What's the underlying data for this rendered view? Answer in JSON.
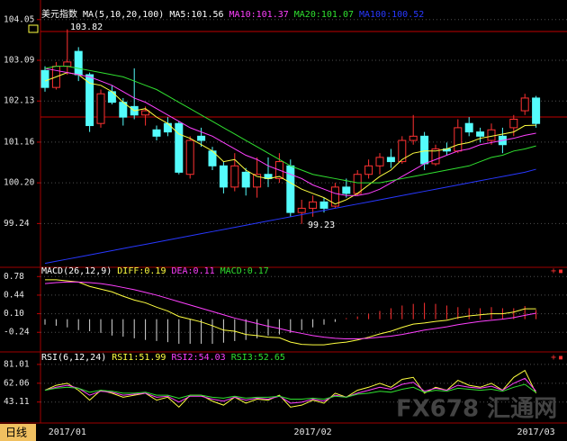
{
  "chart_data": [
    {
      "type": "candlestick",
      "title": "美元指数",
      "indicator": "MA(5,10,20,100)",
      "categories": [
        null,
        null,
        "2017/01",
        null,
        null,
        null,
        null,
        null,
        null,
        null,
        null,
        null,
        null,
        null,
        null,
        null,
        null,
        null,
        null,
        null,
        null,
        null,
        null,
        null,
        "2017/02",
        null,
        null,
        null,
        null,
        null,
        null,
        null,
        null,
        null,
        null,
        null,
        null,
        null,
        null,
        null,
        null,
        null,
        null,
        null,
        "2017/03"
      ],
      "open": [
        102.85,
        102.45,
        102.95,
        103.3,
        102.75,
        101.6,
        102.35,
        102.1,
        102.0,
        101.8,
        101.45,
        101.6,
        101.6,
        100.4,
        101.3,
        100.95,
        100.6,
        100.1,
        100.45,
        100.1,
        100.4,
        100.3,
        100.6,
        99.5,
        99.6,
        99.75,
        99.65,
        100.1,
        99.95,
        100.4,
        100.6,
        100.8,
        100.7,
        101.2,
        101.3,
        100.65,
        101.0,
        100.95,
        101.6,
        101.4,
        101.2,
        101.3,
        101.5,
        101.9,
        102.2
      ],
      "high": [
        102.95,
        103.05,
        103.82,
        103.4,
        102.8,
        102.4,
        102.5,
        102.2,
        102.9,
        102.0,
        101.55,
        101.75,
        101.65,
        101.3,
        101.5,
        101.05,
        100.7,
        100.9,
        100.55,
        100.8,
        100.8,
        100.9,
        100.75,
        99.8,
        99.9,
        99.85,
        100.2,
        100.3,
        100.5,
        100.75,
        100.9,
        101.0,
        101.3,
        101.8,
        101.4,
        101.1,
        101.15,
        101.7,
        101.75,
        101.5,
        101.6,
        101.5,
        101.8,
        102.3,
        102.25
      ],
      "low": [
        102.35,
        102.4,
        102.75,
        102.6,
        101.4,
        101.5,
        102.05,
        101.55,
        101.7,
        101.55,
        101.2,
        101.3,
        100.4,
        100.3,
        101.05,
        100.5,
        99.95,
        100.0,
        99.9,
        99.85,
        100.1,
        100.2,
        99.4,
        99.23,
        99.4,
        99.5,
        99.6,
        99.85,
        99.9,
        100.3,
        100.4,
        100.55,
        100.65,
        101.1,
        100.5,
        100.6,
        100.85,
        100.9,
        101.3,
        101.15,
        101.1,
        100.9,
        101.3,
        101.8,
        101.5
      ],
      "close": [
        102.45,
        102.95,
        103.05,
        102.75,
        101.55,
        102.3,
        102.1,
        101.75,
        101.8,
        101.9,
        101.3,
        101.4,
        100.45,
        101.2,
        101.2,
        100.6,
        100.1,
        100.6,
        100.1,
        100.4,
        100.3,
        100.7,
        99.5,
        99.6,
        99.75,
        99.6,
        100.1,
        99.95,
        100.4,
        100.6,
        100.8,
        100.7,
        101.2,
        101.3,
        100.65,
        101.0,
        100.95,
        101.5,
        101.4,
        101.3,
        101.45,
        101.1,
        101.7,
        102.2,
        101.6
      ],
      "up_color": "#ff3232",
      "down_color": "#54fcfc",
      "series": [
        {
          "name": "MA5:101.56",
          "color": "#ffff40",
          "label_color": "#ffffff",
          "values": [
            102.6,
            102.7,
            102.8,
            102.75,
            102.55,
            102.5,
            102.35,
            102.1,
            101.9,
            101.95,
            101.75,
            101.6,
            101.35,
            101.25,
            101.1,
            100.95,
            100.7,
            100.75,
            100.5,
            100.35,
            100.3,
            100.35,
            100.2,
            100.05,
            99.95,
            99.85,
            99.7,
            99.8,
            99.95,
            100.15,
            100.35,
            100.5,
            100.75,
            100.9,
            100.95,
            100.95,
            101.0,
            101.1,
            101.15,
            101.25,
            101.3,
            101.35,
            101.4,
            101.55,
            101.56
          ]
        },
        {
          "name": "MA10:101.37",
          "color": "#ff40ff",
          "label_color": "#ff40ff",
          "values": [
            102.9,
            102.85,
            102.8,
            102.75,
            102.7,
            102.6,
            102.5,
            102.35,
            102.2,
            102.1,
            101.95,
            101.8,
            101.65,
            101.5,
            101.4,
            101.3,
            101.15,
            101.0,
            100.85,
            100.75,
            100.6,
            100.5,
            100.4,
            100.3,
            100.15,
            100.05,
            99.95,
            99.9,
            99.9,
            99.95,
            100.05,
            100.2,
            100.35,
            100.5,
            100.65,
            100.75,
            100.85,
            100.95,
            101.0,
            101.1,
            101.15,
            101.2,
            101.25,
            101.32,
            101.37
          ]
        },
        {
          "name": "MA20:101.07",
          "color": "#30e030",
          "label_color": "#30e030",
          "values": [
            102.9,
            102.95,
            102.95,
            102.9,
            102.85,
            102.8,
            102.75,
            102.7,
            102.6,
            102.5,
            102.4,
            102.25,
            102.1,
            101.95,
            101.8,
            101.65,
            101.5,
            101.35,
            101.2,
            101.05,
            100.9,
            100.75,
            100.6,
            100.5,
            100.4,
            100.35,
            100.3,
            100.25,
            100.2,
            100.2,
            100.2,
            100.25,
            100.3,
            100.35,
            100.4,
            100.45,
            100.5,
            100.55,
            100.6,
            100.7,
            100.8,
            100.85,
            100.95,
            101.0,
            101.07
          ]
        },
        {
          "name": "MA100:100.52",
          "color": "#2838ff",
          "label_color": "#2838ff",
          "values": [
            98.3,
            98.35,
            98.4,
            98.45,
            98.5,
            98.55,
            98.6,
            98.65,
            98.7,
            98.75,
            98.8,
            98.85,
            98.9,
            98.95,
            99.0,
            99.05,
            99.1,
            99.15,
            99.2,
            99.25,
            99.3,
            99.35,
            99.4,
            99.45,
            99.5,
            99.55,
            99.6,
            99.65,
            99.7,
            99.75,
            99.8,
            99.85,
            99.9,
            99.95,
            100.0,
            100.05,
            100.1,
            100.15,
            100.2,
            100.25,
            100.3,
            100.35,
            100.4,
            100.45,
            100.52
          ]
        }
      ],
      "annotations": [
        "103.82",
        "99.23"
      ],
      "ylim": [
        98.25,
        104.3
      ],
      "yticks": [
        104.05,
        103.09,
        102.13,
        101.16,
        {
          "value": 100.2,
          "label": "100.20"
        },
        99.24
      ],
      "grid": true
    },
    {
      "type": "macd",
      "title": "MACD(26,12,9)",
      "series": [
        {
          "name": "DIFF:0.19",
          "color": "#ffff40",
          "values": [
            0.72,
            0.72,
            0.7,
            0.68,
            0.6,
            0.55,
            0.5,
            0.42,
            0.35,
            0.3,
            0.22,
            0.15,
            0.05,
            0.0,
            -0.05,
            -0.12,
            -0.2,
            -0.22,
            -0.28,
            -0.3,
            -0.33,
            -0.34,
            -0.42,
            -0.46,
            -0.47,
            -0.47,
            -0.44,
            -0.42,
            -0.38,
            -0.33,
            -0.27,
            -0.22,
            -0.15,
            -0.09,
            -0.07,
            -0.04,
            -0.02,
            0.03,
            0.06,
            0.08,
            0.1,
            0.1,
            0.13,
            0.19,
            0.19
          ]
        },
        {
          "name": "DEA:0.11",
          "color": "#ff40ff",
          "values": [
            0.65,
            0.67,
            0.68,
            0.68,
            0.67,
            0.65,
            0.62,
            0.58,
            0.54,
            0.49,
            0.44,
            0.38,
            0.32,
            0.26,
            0.2,
            0.14,
            0.08,
            0.02,
            -0.03,
            -0.08,
            -0.13,
            -0.17,
            -0.22,
            -0.26,
            -0.3,
            -0.33,
            -0.35,
            -0.36,
            -0.36,
            -0.35,
            -0.33,
            -0.31,
            -0.28,
            -0.24,
            -0.2,
            -0.17,
            -0.14,
            -0.1,
            -0.07,
            -0.04,
            -0.02,
            0.0,
            0.03,
            0.07,
            0.11
          ]
        }
      ],
      "histogram": {
        "name": "MACD:0.17",
        "color": "#30e030",
        "up_color": "#ff3232",
        "down_color": "#d8d8d8",
        "values": [
          -0.1,
          -0.12,
          -0.15,
          -0.2,
          -0.22,
          -0.25,
          -0.3,
          -0.32,
          -0.35,
          -0.38,
          -0.4,
          -0.42,
          -0.45,
          -0.45,
          -0.45,
          -0.45,
          -0.43,
          -0.4,
          -0.38,
          -0.35,
          -0.3,
          -0.28,
          -0.25,
          -0.2,
          -0.15,
          -0.1,
          -0.05,
          0.02,
          0.05,
          0.1,
          0.15,
          0.2,
          0.25,
          0.28,
          0.3,
          0.28,
          0.25,
          0.22,
          0.2,
          0.2,
          0.22,
          0.2,
          0.2,
          0.24,
          0.17
        ]
      },
      "ylim": [
        -0.5,
        0.9
      ],
      "yticks": [
        0.78,
        0.44,
        {
          "value": 0.1,
          "label": "0.10"
        },
        -0.24
      ],
      "grid": true
    },
    {
      "type": "rsi",
      "title": "RSI(6,12,24)",
      "series": [
        {
          "name": "RSI1:51.99",
          "color": "#ffff40",
          "values": [
            55,
            60,
            62,
            55,
            45,
            55,
            52,
            48,
            50,
            52,
            45,
            48,
            38,
            50,
            50,
            44,
            40,
            48,
            42,
            46,
            45,
            50,
            38,
            40,
            45,
            42,
            52,
            48,
            55,
            58,
            62,
            58,
            66,
            68,
            52,
            58,
            55,
            65,
            60,
            58,
            62,
            55,
            68,
            75,
            51.99
          ]
        },
        {
          "name": "RSI2:54.03",
          "color": "#ff40ff",
          "values": [
            55,
            58,
            60,
            57,
            50,
            54,
            53,
            50,
            51,
            52,
            48,
            49,
            43,
            49,
            49,
            46,
            44,
            48,
            45,
            47,
            46,
            49,
            42,
            43,
            46,
            44,
            50,
            48,
            52,
            55,
            58,
            56,
            61,
            63,
            54,
            57,
            55,
            60,
            58,
            57,
            59,
            55,
            62,
            67,
            54.03
          ]
        },
        {
          "name": "RSI3:52.65",
          "color": "#30e030",
          "values": [
            55,
            57,
            58,
            57,
            53,
            55,
            54,
            52,
            52,
            53,
            50,
            50,
            47,
            50,
            50,
            48,
            47,
            49,
            47,
            48,
            48,
            49,
            46,
            46,
            47,
            46,
            49,
            48,
            51,
            52,
            54,
            53,
            56,
            58,
            53,
            55,
            54,
            57,
            56,
            55,
            56,
            54,
            58,
            61,
            52.65
          ]
        }
      ],
      "ylim": [
        22,
        90
      ],
      "yticks": [
        81.01,
        62.06,
        43.11
      ],
      "grid": true
    }
  ],
  "period": "日线",
  "watermark": "FX678 汇通网"
}
